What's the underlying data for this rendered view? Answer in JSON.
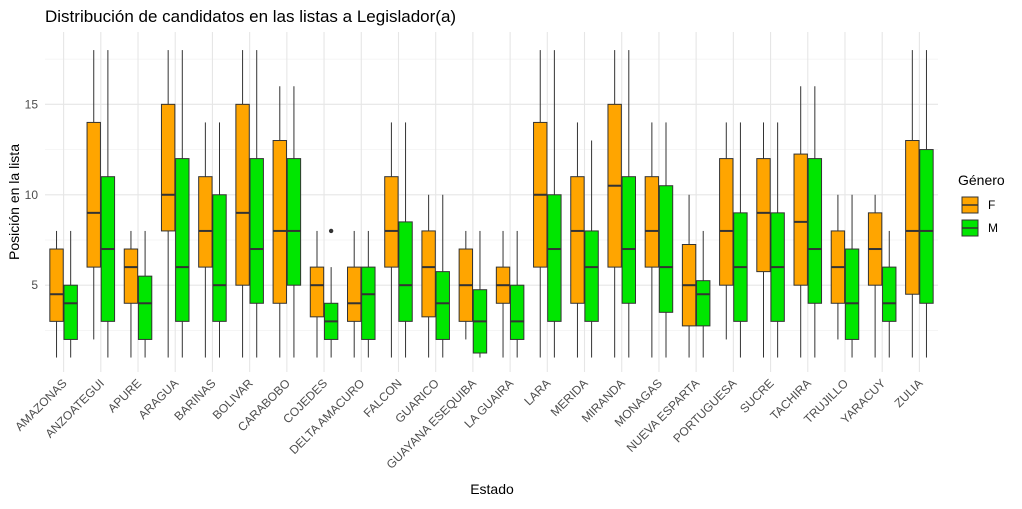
{
  "chart_data": {
    "type": "boxplot",
    "title": "Distribución de candidatos en las listas a Legislador(a)",
    "xlabel": "Estado",
    "ylabel": "Posición en la lista",
    "ylim": [
      0.2,
      19
    ],
    "yticks": [
      5,
      10,
      15
    ],
    "grid": true,
    "legend": {
      "title": "Género",
      "placement": "right",
      "items": [
        {
          "key": "F",
          "label": "F",
          "color": "#FFA500"
        },
        {
          "key": "M",
          "label": "M",
          "color": "#00E600"
        }
      ]
    },
    "categories": [
      "AMAZONAS",
      "ANZOATEGUI",
      "APURE",
      "ARAGUA",
      "BARINAS",
      "BOLIVAR",
      "CARABOBO",
      "COJEDES",
      "DELTA AMACURO",
      "FALCON",
      "GUARICO",
      "GUAYANA ESEQUIBA",
      "LA GUAIRA",
      "LARA",
      "MERIDA",
      "MIRANDA",
      "MONAGAS",
      "NUEVA ESPARTA",
      "PORTUGUESA",
      "SUCRE",
      "TACHIRA",
      "TRUJILLO",
      "YARACUY",
      "ZULIA"
    ],
    "series": [
      {
        "name": "F",
        "color": "#FFA500",
        "boxes": [
          {
            "min": 1,
            "q1": 3,
            "median": 4.5,
            "q3": 7,
            "max": 8
          },
          {
            "min": 2,
            "q1": 6,
            "median": 9,
            "q3": 14,
            "max": 18
          },
          {
            "min": 1,
            "q1": 4,
            "median": 6,
            "q3": 7,
            "max": 8
          },
          {
            "min": 1,
            "q1": 8,
            "median": 10,
            "q3": 15,
            "max": 18
          },
          {
            "min": 1,
            "q1": 6,
            "median": 8,
            "q3": 11,
            "max": 14
          },
          {
            "min": 1,
            "q1": 5,
            "median": 9,
            "q3": 15,
            "max": 18
          },
          {
            "min": 1,
            "q1": 4,
            "median": 8,
            "q3": 13,
            "max": 16
          },
          {
            "min": 1,
            "q1": 3.25,
            "median": 5,
            "q3": 6,
            "max": 8
          },
          {
            "min": 1,
            "q1": 3,
            "median": 4,
            "q3": 6,
            "max": 8
          },
          {
            "min": 1,
            "q1": 6,
            "median": 8,
            "q3": 11,
            "max": 14
          },
          {
            "min": 1,
            "q1": 3.25,
            "median": 6,
            "q3": 8,
            "max": 10
          },
          {
            "min": 2,
            "q1": 3,
            "median": 5,
            "q3": 7,
            "max": 8
          },
          {
            "min": 1,
            "q1": 4,
            "median": 5,
            "q3": 6,
            "max": 8
          },
          {
            "min": 1,
            "q1": 6,
            "median": 10,
            "q3": 14,
            "max": 18
          },
          {
            "min": 1,
            "q1": 4,
            "median": 8,
            "q3": 11,
            "max": 14
          },
          {
            "min": 1,
            "q1": 6,
            "median": 10.5,
            "q3": 15,
            "max": 18
          },
          {
            "min": 1,
            "q1": 6,
            "median": 8,
            "q3": 11,
            "max": 14
          },
          {
            "min": 1,
            "q1": 2.75,
            "median": 5,
            "q3": 7.25,
            "max": 10
          },
          {
            "min": 2,
            "q1": 5,
            "median": 8,
            "q3": 12,
            "max": 14
          },
          {
            "min": 1,
            "q1": 5.75,
            "median": 9,
            "q3": 12,
            "max": 14
          },
          {
            "min": 1,
            "q1": 5,
            "median": 8.5,
            "q3": 12.25,
            "max": 16
          },
          {
            "min": 2,
            "q1": 4,
            "median": 6,
            "q3": 8,
            "max": 10
          },
          {
            "min": 1,
            "q1": 5,
            "median": 7,
            "q3": 9,
            "max": 10
          },
          {
            "min": 1,
            "q1": 4.5,
            "median": 8,
            "q3": 13,
            "max": 18
          }
        ],
        "outliers": []
      },
      {
        "name": "M",
        "color": "#00E600",
        "boxes": [
          {
            "min": 1,
            "q1": 2,
            "median": 4,
            "q3": 5,
            "max": 8
          },
          {
            "min": 1,
            "q1": 3,
            "median": 7,
            "q3": 11,
            "max": 18
          },
          {
            "min": 1,
            "q1": 2,
            "median": 4,
            "q3": 5.5,
            "max": 8
          },
          {
            "min": 1,
            "q1": 3,
            "median": 6,
            "q3": 12,
            "max": 18
          },
          {
            "min": 1,
            "q1": 3,
            "median": 5,
            "q3": 10,
            "max": 14
          },
          {
            "min": 1,
            "q1": 4,
            "median": 7,
            "q3": 12,
            "max": 18
          },
          {
            "min": 1,
            "q1": 5,
            "median": 8,
            "q3": 12,
            "max": 16
          },
          {
            "min": 1,
            "q1": 2,
            "median": 3,
            "q3": 4,
            "max": 6
          },
          {
            "min": 1,
            "q1": 2,
            "median": 4.5,
            "q3": 6,
            "max": 8
          },
          {
            "min": 1,
            "q1": 3,
            "median": 5,
            "q3": 8.5,
            "max": 14
          },
          {
            "min": 1,
            "q1": 2,
            "median": 4,
            "q3": 5.75,
            "max": 10
          },
          {
            "min": 1,
            "q1": 1.25,
            "median": 3,
            "q3": 4.75,
            "max": 8
          },
          {
            "min": 1,
            "q1": 2,
            "median": 3,
            "q3": 5,
            "max": 8
          },
          {
            "min": 1,
            "q1": 3,
            "median": 7,
            "q3": 10,
            "max": 18
          },
          {
            "min": 1,
            "q1": 3,
            "median": 6,
            "q3": 8,
            "max": 13
          },
          {
            "min": 1,
            "q1": 4,
            "median": 7,
            "q3": 11,
            "max": 18
          },
          {
            "min": 1,
            "q1": 3.5,
            "median": 6,
            "q3": 10.5,
            "max": 14
          },
          {
            "min": 1,
            "q1": 2.75,
            "median": 4.5,
            "q3": 5.25,
            "max": 8
          },
          {
            "min": 1,
            "q1": 3,
            "median": 6,
            "q3": 9,
            "max": 14
          },
          {
            "min": 1,
            "q1": 3,
            "median": 6,
            "q3": 9,
            "max": 14
          },
          {
            "min": 1,
            "q1": 4,
            "median": 7,
            "q3": 12,
            "max": 16
          },
          {
            "min": 1,
            "q1": 2,
            "median": 4,
            "q3": 7,
            "max": 10
          },
          {
            "min": 1,
            "q1": 3,
            "median": 4,
            "q3": 6,
            "max": 8
          },
          {
            "min": 1,
            "q1": 4,
            "median": 8,
            "q3": 12.5,
            "max": 18
          }
        ],
        "outliers": [
          {
            "category": "COJEDES",
            "value": 8
          }
        ]
      }
    ]
  }
}
